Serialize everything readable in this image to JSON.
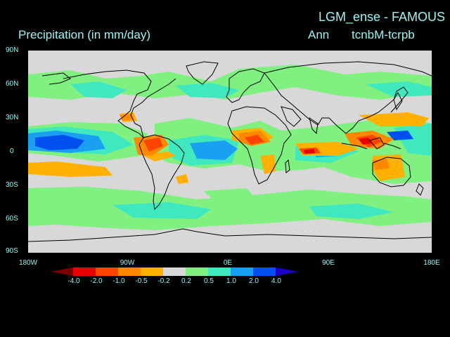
{
  "header": {
    "model_title": "LGM_ense - FAMOUS",
    "variable_title": "Precipitation (in mm/day)",
    "season": "Ann",
    "experiment": "tcnbM-tcrpb"
  },
  "axes": {
    "lat_labels": [
      "90N",
      "60N",
      "30N",
      "0",
      "30S",
      "60S",
      "90S"
    ],
    "lon_labels": [
      "180W",
      "90W",
      "0E",
      "90E",
      "180E"
    ]
  },
  "colorbar": {
    "levels": [
      "-4.0",
      "-2.0",
      "-1.0",
      "-0.5",
      "-0.2",
      "0.2",
      "0.5",
      "1.0",
      "2.0",
      "4.0"
    ],
    "colors": [
      "#7a0000",
      "#e60000",
      "#ff4400",
      "#ff8800",
      "#ffb000",
      "#d8d8d8",
      "#80f080",
      "#40e8c0",
      "#1aa0f0",
      "#0050f0",
      "#1a00c8"
    ]
  },
  "colors": {
    "background": "#000000",
    "text": "#9ff3f3",
    "neutral": "#d8d8d8"
  }
}
